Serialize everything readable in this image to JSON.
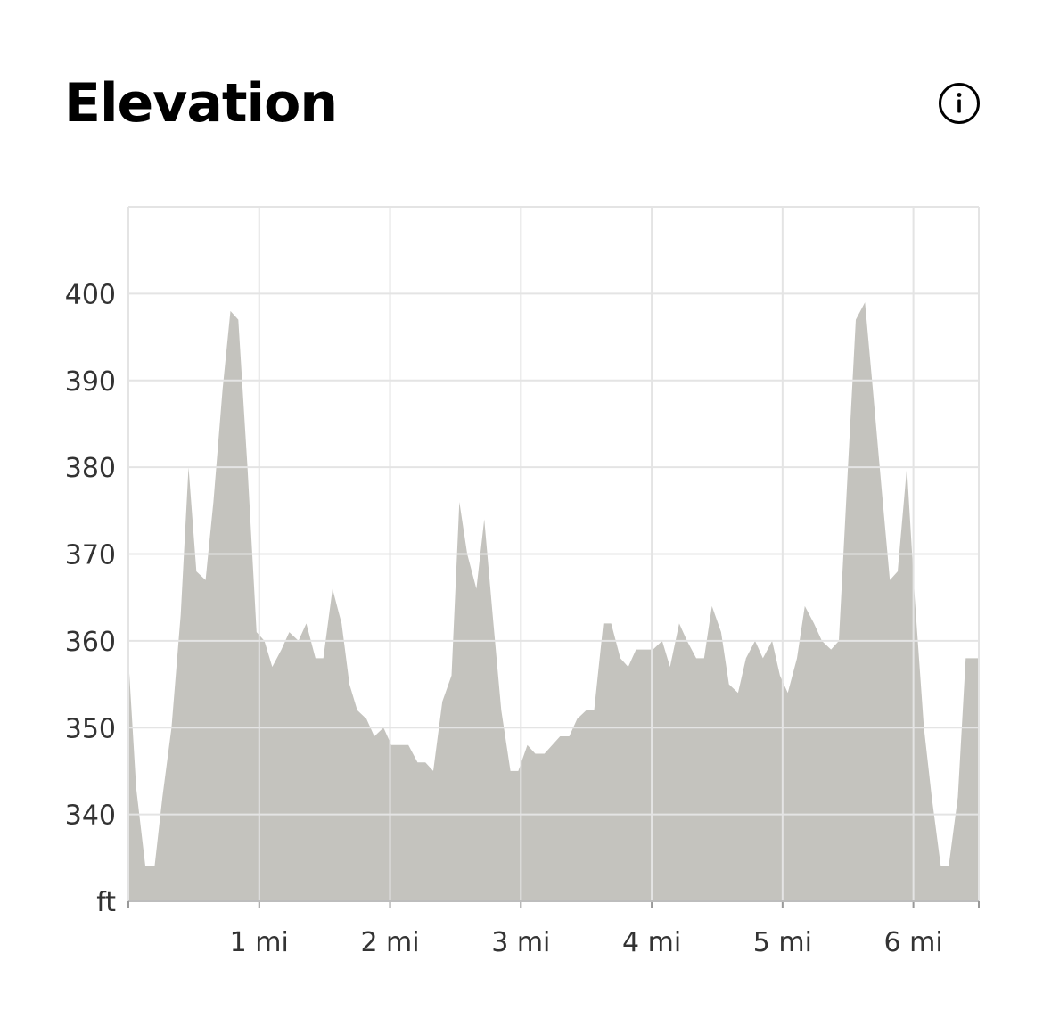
{
  "header": {
    "title": "Elevation",
    "info_icon": "info-circle-icon"
  },
  "colors": {
    "area_fill": "#c4c3be",
    "grid": "#e4e4e4",
    "text": "#333333",
    "title": "#000000"
  },
  "chart_data": {
    "type": "area",
    "title": "Elevation",
    "xlabel": "",
    "ylabel": "ft",
    "xlim": [
      0,
      6.5
    ],
    "ylim": [
      330,
      410
    ],
    "x_ticks": [
      1,
      2,
      3,
      4,
      5,
      6
    ],
    "x_tick_labels": [
      "1 mi",
      "2 mi",
      "3 mi",
      "4 mi",
      "5 mi",
      "6 mi"
    ],
    "y_ticks": [
      340,
      350,
      360,
      370,
      380,
      390,
      400
    ],
    "y_tick_labels": [
      "340",
      "350",
      "360",
      "370",
      "380",
      "390",
      "400"
    ],
    "y_unit_label": "ft",
    "grid": true,
    "legend": "none",
    "series": [
      {
        "x": [
          0,
          0.06,
          0.13,
          0.2,
          0.26,
          0.33,
          0.4,
          0.46,
          0.52,
          0.59,
          0.65,
          0.72,
          0.78,
          0.84,
          0.91,
          0.98,
          1.04,
          1.1,
          1.17,
          1.23,
          1.3,
          1.36,
          1.43,
          1.49,
          1.56,
          1.63,
          1.69,
          1.75,
          1.82,
          1.88,
          1.95,
          2.01,
          2.07,
          2.14,
          2.21,
          2.27,
          2.33,
          2.4,
          2.47,
          2.53,
          2.59,
          2.66,
          2.72,
          2.79,
          2.85,
          2.92,
          2.98,
          3.05,
          3.11,
          3.18,
          3.24,
          3.3,
          3.37,
          3.43,
          3.5,
          3.56,
          3.63,
          3.69,
          3.76,
          3.82,
          3.88,
          3.95,
          4.01,
          4.08,
          4.14,
          4.21,
          4.27,
          4.34,
          4.4,
          4.46,
          4.53,
          4.59,
          4.66,
          4.72,
          4.79,
          4.85,
          4.92,
          4.98,
          5.04,
          5.11,
          5.17,
          5.24,
          5.3,
          5.37,
          5.43,
          5.5,
          5.56,
          5.63,
          5.69,
          5.76,
          5.82,
          5.88,
          5.95,
          6.01,
          6.08,
          6.14,
          6.21,
          6.27,
          6.34,
          6.4,
          6.5
        ],
        "values": [
          358,
          343,
          334,
          334,
          342,
          350,
          363,
          380,
          368,
          367,
          376,
          389,
          398,
          397,
          380,
          361,
          360,
          357,
          359,
          361,
          360,
          362,
          358,
          358,
          366,
          362,
          355,
          352,
          351,
          349,
          350,
          348,
          348,
          348,
          346,
          346,
          345,
          353,
          356,
          376,
          370,
          366,
          374,
          362,
          352,
          345,
          345,
          348,
          347,
          347,
          348,
          349,
          349,
          351,
          352,
          352,
          362,
          362,
          358,
          357,
          359,
          359,
          359,
          360,
          357,
          362,
          360,
          358,
          358,
          364,
          361,
          355,
          354,
          358,
          360,
          358,
          360,
          356,
          354,
          358,
          364,
          362,
          360,
          359,
          360,
          380,
          397,
          399,
          389,
          377,
          367,
          368,
          380,
          365,
          350,
          342,
          334,
          334,
          342,
          358,
          358
        ]
      }
    ]
  }
}
